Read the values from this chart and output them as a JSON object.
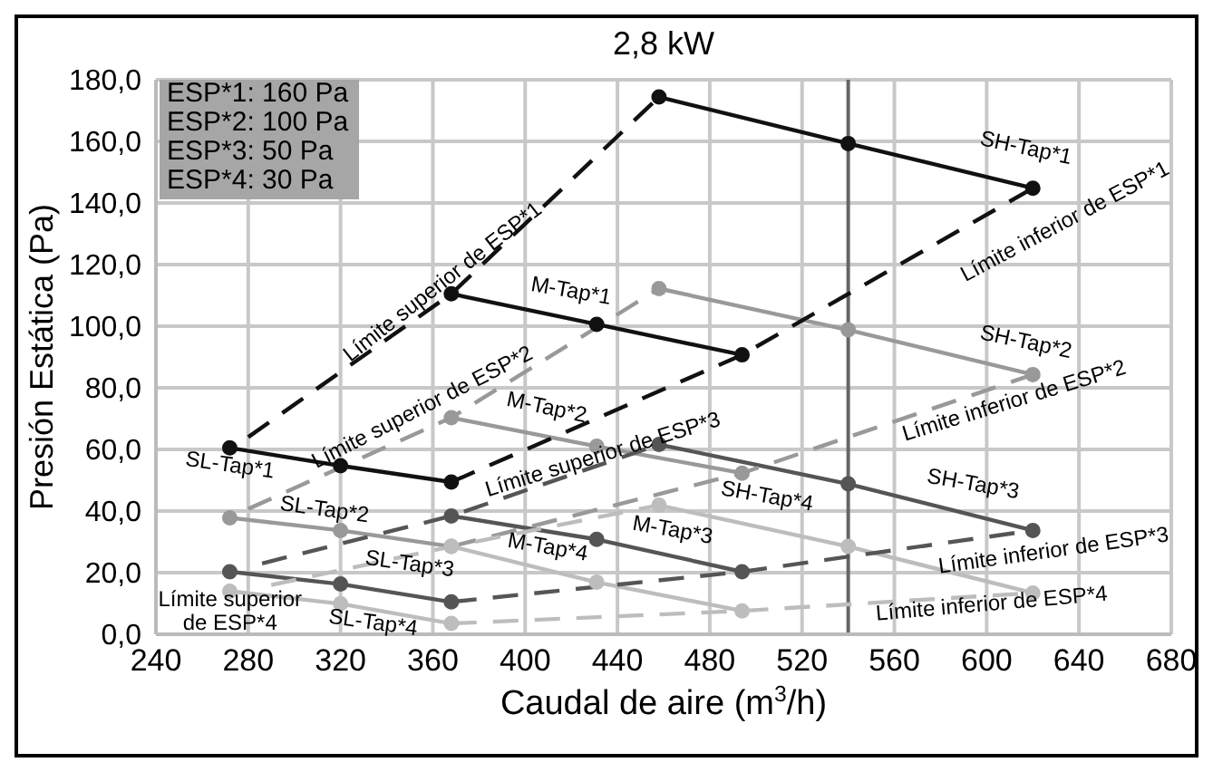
{
  "chart_data": {
    "type": "line",
    "title": "2,8 kW",
    "xlabel": "Caudal de aire (m$^{3}$/h)",
    "ylabel": "Presión Estática (Pa)",
    "xlim": [
      240,
      680
    ],
    "xticks": [
      240,
      280,
      320,
      360,
      400,
      440,
      480,
      520,
      560,
      600,
      640,
      680
    ],
    "ylim": [
      0,
      180
    ],
    "yticks": [
      {
        "value": 0,
        "label": "0,0"
      },
      {
        "value": 20,
        "label": "20,0"
      },
      {
        "value": 40,
        "label": "40,0"
      },
      {
        "value": 60,
        "label": "60,0"
      },
      {
        "value": 80,
        "label": "80,0"
      },
      {
        "value": 100,
        "label": "100,0"
      },
      {
        "value": 120,
        "label": "120,0"
      },
      {
        "value": 140,
        "label": "140,0"
      },
      {
        "value": 160,
        "label": "160,0"
      },
      {
        "value": 180,
        "label": "180,0"
      }
    ],
    "grid": true,
    "marker": "circle",
    "line_style": "solid",
    "series": [
      {
        "color": "#111111",
        "x": [
          272,
          320,
          368
        ],
        "values": [
          60.5,
          54.7,
          49.4
        ]
      },
      {
        "color": "#111111",
        "x": [
          368,
          431,
          494
        ],
        "values": [
          110.5,
          100.6,
          90.7
        ]
      },
      {
        "color": "#111111",
        "x": [
          458,
          540,
          620
        ],
        "values": [
          174.4,
          159.3,
          144.8
        ]
      },
      {
        "color": "#999999",
        "x": [
          272,
          320,
          368
        ],
        "values": [
          37.8,
          33.7,
          28.5
        ]
      },
      {
        "color": "#999999",
        "x": [
          368,
          431,
          494
        ],
        "values": [
          70.3,
          61,
          52.3
        ]
      },
      {
        "color": "#999999",
        "x": [
          458,
          540,
          620
        ],
        "values": [
          112.2,
          98.8,
          84.3
        ]
      },
      {
        "color": "#555555",
        "x": [
          272,
          320,
          368
        ],
        "values": [
          20.3,
          16.3,
          10.5
        ]
      },
      {
        "color": "#555555",
        "x": [
          368,
          431,
          494
        ],
        "values": [
          38.4,
          30.8,
          20.3
        ]
      },
      {
        "color": "#555555",
        "x": [
          458,
          540,
          620
        ],
        "values": [
          61.6,
          48.8,
          33.7
        ]
      },
      {
        "color": "#bdbdbd",
        "x": [
          272,
          320,
          368
        ],
        "values": [
          14,
          9.9,
          3.5
        ]
      },
      {
        "color": "#bdbdbd",
        "x": [
          368,
          431,
          494
        ],
        "values": [
          28.5,
          16.9,
          7.6
        ]
      },
      {
        "color": "#bdbdbd",
        "x": [
          458,
          540,
          620
        ],
        "values": [
          41.9,
          28.5,
          13.4
        ]
      },
      {
        "color": "#111111",
        "line_style": "dashed",
        "marker": "none",
        "x": [
          280,
          368,
          458
        ],
        "values": [
          64,
          110.5,
          174.4
        ]
      },
      {
        "color": "#111111",
        "line_style": "dashed",
        "marker": "none",
        "x": [
          368,
          494,
          620
        ],
        "values": [
          49.4,
          90.7,
          144.8
        ]
      },
      {
        "color": "#999999",
        "line_style": "dashed",
        "marker": "none",
        "x": [
          280,
          368,
          458
        ],
        "values": [
          40.7,
          70.3,
          112.2
        ]
      },
      {
        "color": "#999999",
        "line_style": "dashed",
        "marker": "none",
        "x": [
          368,
          494,
          620
        ],
        "values": [
          28.5,
          52.3,
          84.3
        ]
      },
      {
        "color": "#555555",
        "line_style": "dashed",
        "marker": "none",
        "x": [
          286,
          368,
          458
        ],
        "values": [
          23,
          38.4,
          61.6
        ]
      },
      {
        "color": "#555555",
        "line_style": "dashed",
        "marker": "none",
        "x": [
          368,
          494,
          620
        ],
        "values": [
          10.5,
          20.3,
          33.7
        ]
      },
      {
        "color": "#bdbdbd",
        "line_style": "dashed",
        "marker": "none",
        "x": [
          290,
          368,
          458
        ],
        "values": [
          16,
          28.5,
          41.9
        ]
      },
      {
        "color": "#bdbdbd",
        "line_style": "dashed",
        "marker": "none",
        "x": [
          368,
          494,
          620
        ],
        "values": [
          3.5,
          7.6,
          13.4
        ]
      }
    ],
    "ref_lines": [
      {
        "axis": "x",
        "value": 540,
        "color": "#666666"
      }
    ],
    "annotations": [
      "ESP*1: 160 Pa",
      "ESP*2: 100 Pa",
      "ESP*3: 50 Pa",
      "ESP*4: 30 Pa",
      "SH-Tap*1",
      "Límite inferior de ESP*1",
      "Límite superior de ESP*1",
      "M-Tap*1",
      "SH-Tap*2",
      "Límite superior de ESP*2",
      "M-Tap*2",
      "Límite superior de ESP*3",
      "Límite inferior de ESP*2",
      "SH-Tap*3",
      "SH-Tap*4",
      "M-Tap*3",
      "M-Tap*4",
      "Límite inferior de ESP*3",
      "Límite inferior de ESP*4",
      "SL-Tap*1",
      "SL-Tap*2",
      "SL-Tap*3",
      "SL-Tap*4",
      "Límite superior\nde ESP*4"
    ]
  }
}
